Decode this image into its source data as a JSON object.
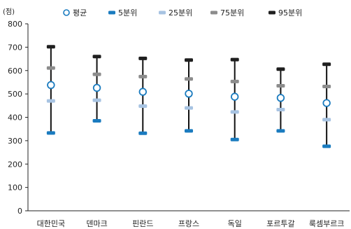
{
  "chart_data": {
    "type": "scatter",
    "unit_label": "(점)",
    "categories": [
      "대한민국",
      "덴마크",
      "핀란드",
      "프랑스",
      "독일",
      "포르투갈",
      "룩셈부르크"
    ],
    "ylim": [
      0,
      800
    ],
    "yticks": [
      0,
      100,
      200,
      300,
      400,
      500,
      600,
      700,
      800
    ],
    "grid": false,
    "legend_position": "top",
    "series": [
      {
        "name": "평균",
        "color": "#1a7bbf",
        "marker": "open-circle",
        "values": [
          538,
          526,
          509,
          501,
          488,
          483,
          461
        ]
      },
      {
        "name": "5분위",
        "color": "#1a7bbf",
        "marker": "dash",
        "values": [
          333,
          385,
          332,
          342,
          305,
          342,
          276
        ]
      },
      {
        "name": "25분위",
        "color": "#a7c3e2",
        "marker": "dash",
        "values": [
          470,
          473,
          448,
          440,
          423,
          433,
          390
        ]
      },
      {
        "name": "75분위",
        "color": "#8c8c8c",
        "marker": "dash",
        "values": [
          611,
          584,
          574,
          564,
          553,
          535,
          532
        ]
      },
      {
        "name": "95분위",
        "color": "#1f1f1f",
        "marker": "dash",
        "values": [
          702,
          660,
          652,
          645,
          647,
          606,
          627
        ]
      }
    ]
  }
}
